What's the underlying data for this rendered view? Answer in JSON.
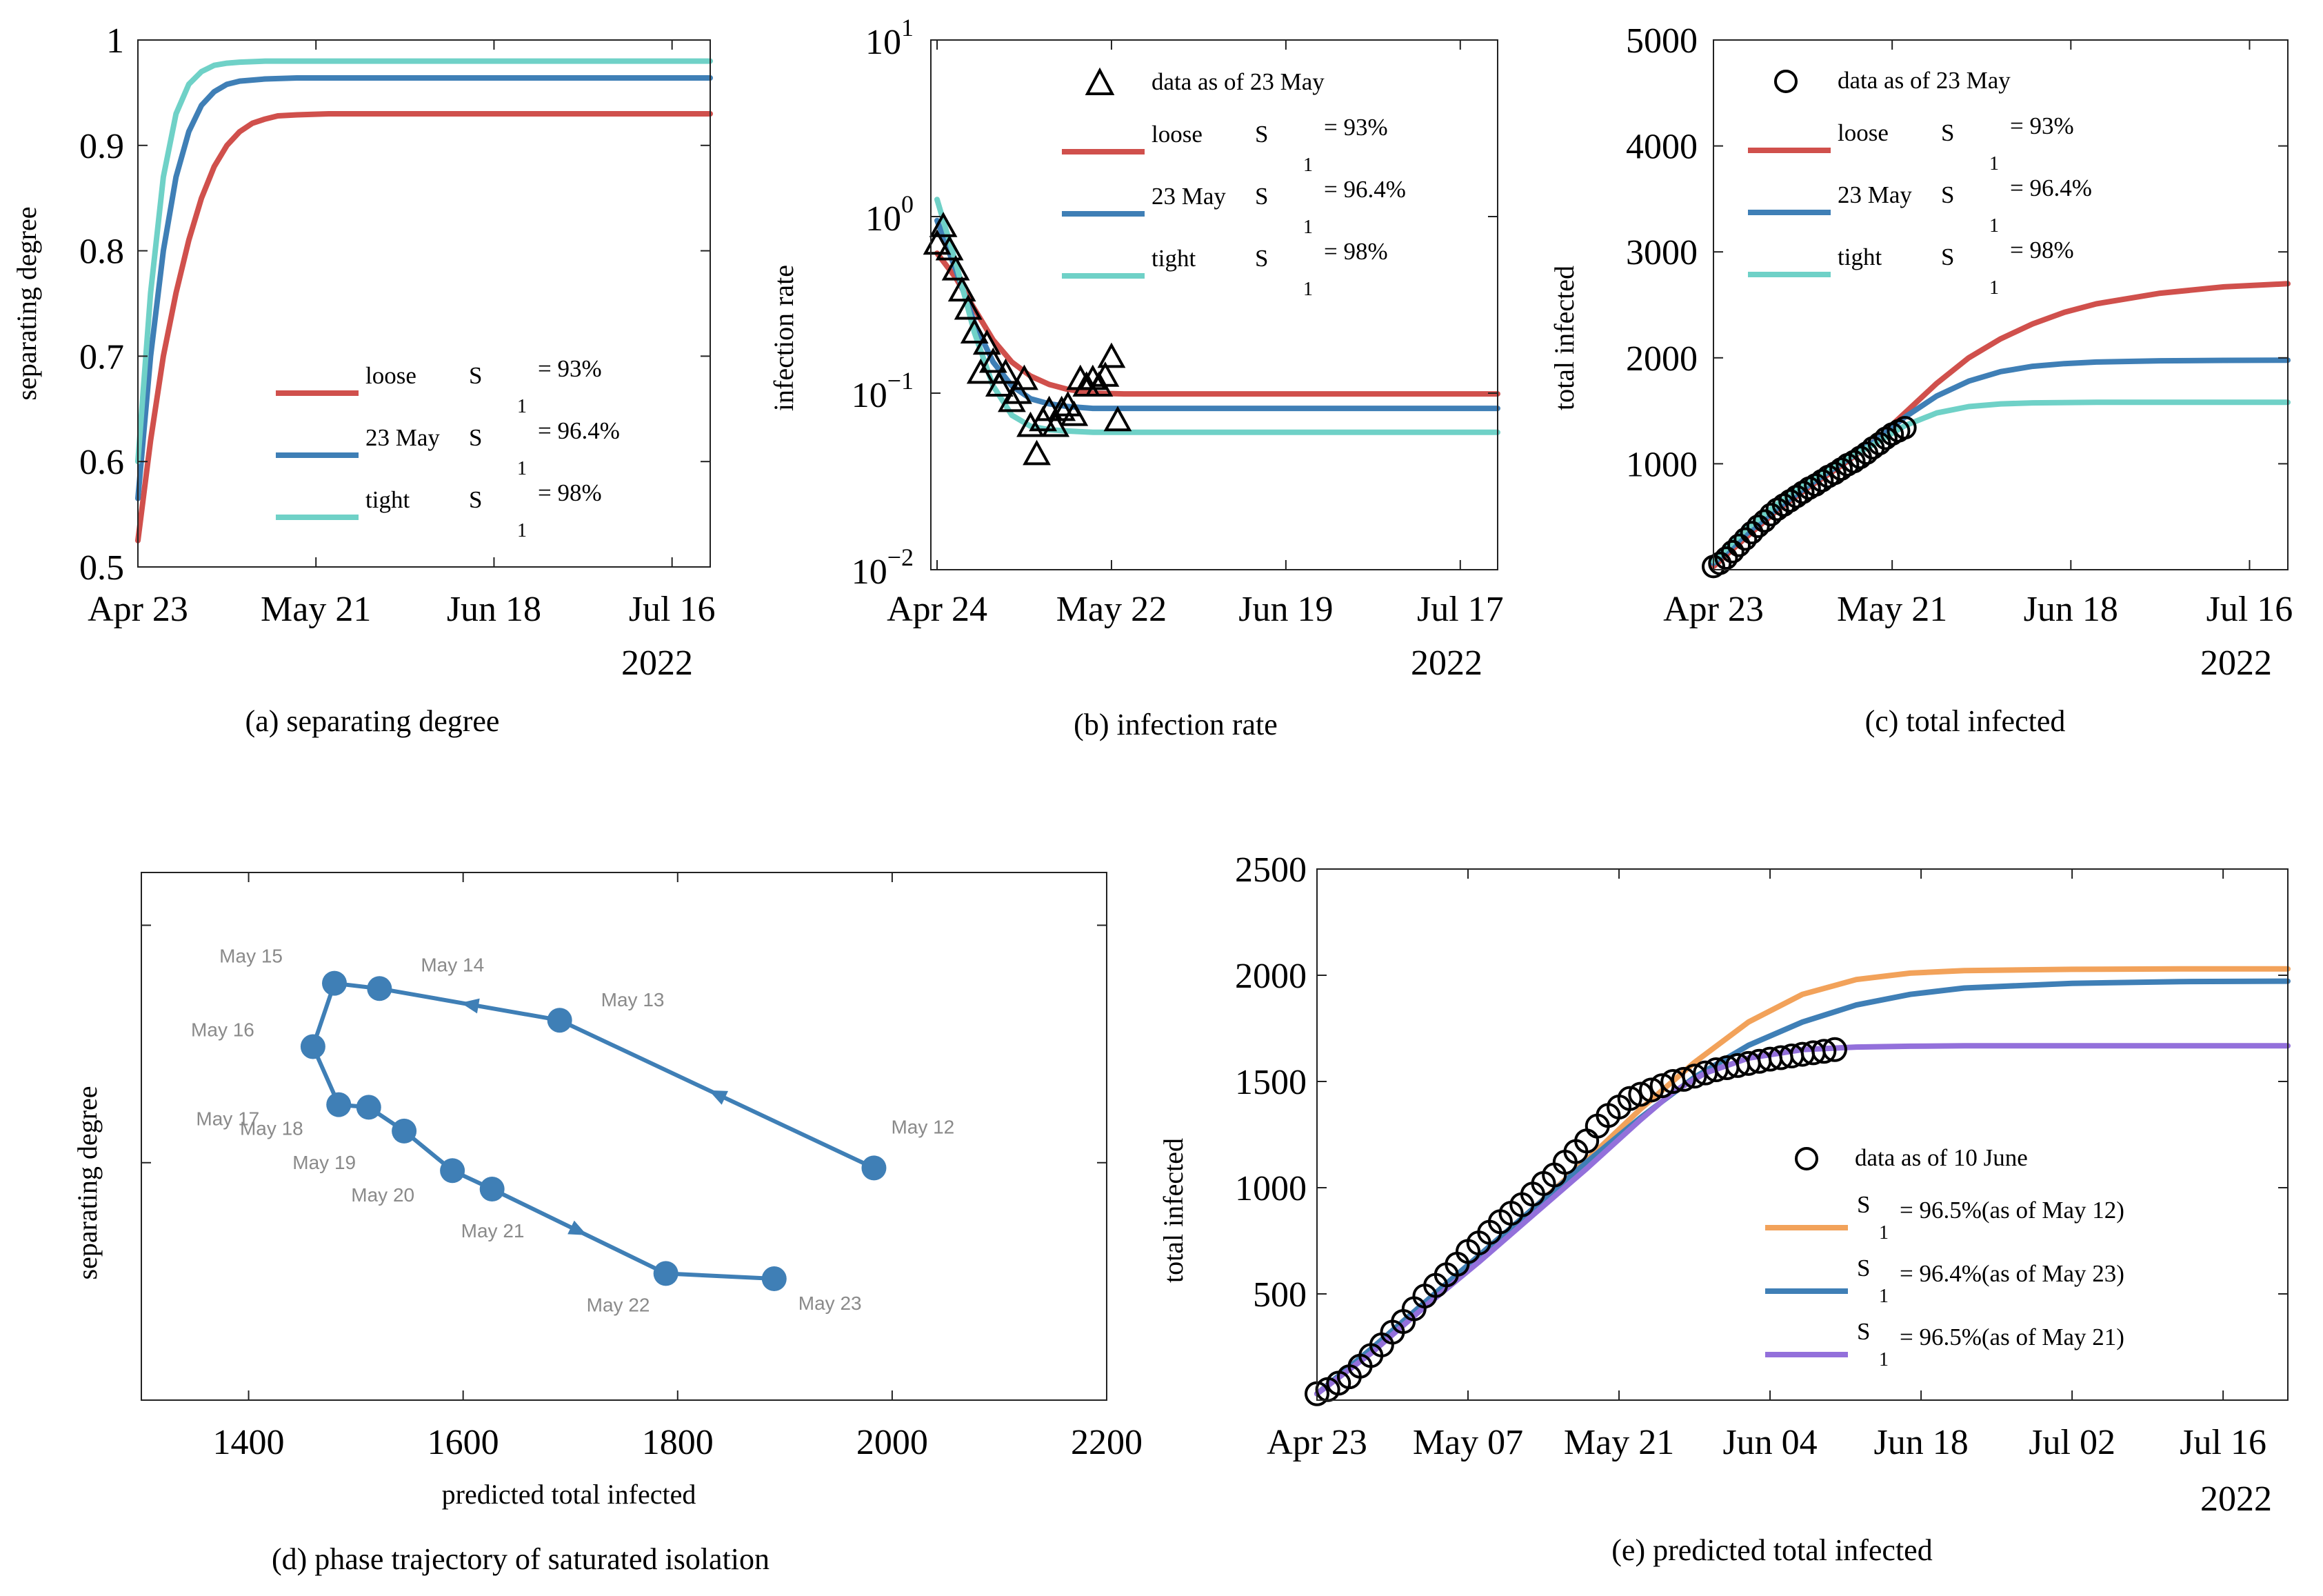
{
  "colors": {
    "loose": "#d0504c",
    "may23": "#3f7fb6",
    "tight": "#6fd1c7",
    "e_orange": "#f2a25a",
    "e_blue": "#3f7fb6",
    "e_purple": "#9370db",
    "phase": "#3f7fb6"
  },
  "chart_data": [
    {
      "id": "a",
      "type": "line",
      "caption_tag": "(a)",
      "caption_text": "separating degree",
      "title": "",
      "xlabel": "",
      "ylabel": "separating degree",
      "year_label": "2022",
      "xlim": [
        0,
        90
      ],
      "ylim": [
        0.5,
        1.0
      ],
      "xticks": [
        {
          "v": 0,
          "label": "Apr 23"
        },
        {
          "v": 28,
          "label": "May 21"
        },
        {
          "v": 56,
          "label": "Jun 18"
        },
        {
          "v": 84,
          "label": "Jul 16"
        }
      ],
      "yticks": [
        {
          "v": 0.5,
          "label": "0.5"
        },
        {
          "v": 0.6,
          "label": "0.6"
        },
        {
          "v": 0.7,
          "label": "0.7"
        },
        {
          "v": 0.8,
          "label": "0.8"
        },
        {
          "v": 0.9,
          "label": "0.9"
        },
        {
          "v": 1.0,
          "label": "1"
        }
      ],
      "legend": [
        {
          "name": "loose",
          "sub": "1",
          "value": "= 93%",
          "color_key": "loose"
        },
        {
          "name": "23 May",
          "sub": "1",
          "value": "= 96.4%",
          "color_key": "may23"
        },
        {
          "name": "tight",
          "sub": "1",
          "value": "= 98%",
          "color_key": "tight"
        }
      ],
      "legend_symbol": "S",
      "series": [
        {
          "name": "loose",
          "color_key": "loose",
          "x": [
            0,
            2,
            4,
            6,
            8,
            10,
            12,
            14,
            16,
            18,
            20,
            22,
            25,
            30,
            40,
            60,
            90
          ],
          "y": [
            0.525,
            0.62,
            0.7,
            0.76,
            0.81,
            0.85,
            0.88,
            0.9,
            0.913,
            0.921,
            0.925,
            0.928,
            0.929,
            0.93,
            0.93,
            0.93,
            0.93
          ]
        },
        {
          "name": "23 May",
          "color_key": "may23",
          "x": [
            0,
            2,
            4,
            6,
            8,
            10,
            12,
            14,
            16,
            20,
            25,
            30,
            40,
            60,
            90
          ],
          "y": [
            0.565,
            0.7,
            0.8,
            0.87,
            0.913,
            0.938,
            0.951,
            0.958,
            0.961,
            0.963,
            0.964,
            0.964,
            0.964,
            0.964,
            0.964
          ]
        },
        {
          "name": "tight",
          "color_key": "tight",
          "x": [
            0,
            2,
            4,
            6,
            8,
            10,
            12,
            14,
            16,
            20,
            25,
            30,
            40,
            60,
            90
          ],
          "y": [
            0.6,
            0.76,
            0.87,
            0.93,
            0.958,
            0.97,
            0.976,
            0.978,
            0.979,
            0.98,
            0.98,
            0.98,
            0.98,
            0.98,
            0.98
          ]
        }
      ]
    },
    {
      "id": "b",
      "type": "line",
      "caption_tag": "(b)",
      "caption_text": "infection rate",
      "title": "",
      "ylabel": "infection rate",
      "year_label": "2022",
      "yscale": "log",
      "xlim": [
        -1,
        90
      ],
      "ylim": [
        0.01,
        10
      ],
      "xticks": [
        {
          "v": 0,
          "label": "Apr 24"
        },
        {
          "v": 28,
          "label": "May 22"
        },
        {
          "v": 56,
          "label": "Jun 19"
        },
        {
          "v": 84,
          "label": "Jul 17"
        }
      ],
      "yticks": [
        {
          "v": 0.01,
          "base": "10",
          "exp": "−2"
        },
        {
          "v": 0.1,
          "base": "10",
          "exp": "−1"
        },
        {
          "v": 1,
          "base": "10",
          "exp": "0"
        },
        {
          "v": 10,
          "base": "10",
          "exp": "1"
        }
      ],
      "legend_symbol": "S",
      "legend_data_label": "data as of 23 May",
      "legend": [
        {
          "name": "loose",
          "sub": "1",
          "value": "= 93%",
          "color_key": "loose"
        },
        {
          "name": "23 May",
          "sub": "1",
          "value": "= 96.4%",
          "color_key": "may23"
        },
        {
          "name": "tight",
          "sub": "1",
          "value": "= 98%",
          "color_key": "tight"
        }
      ],
      "series": [
        {
          "name": "loose",
          "color_key": "loose",
          "x": [
            0,
            3,
            6,
            9,
            12,
            15,
            18,
            21,
            25,
            30,
            40,
            60,
            90
          ],
          "y": [
            0.62,
            0.45,
            0.3,
            0.2,
            0.15,
            0.125,
            0.112,
            0.105,
            0.1,
            0.099,
            0.099,
            0.099,
            0.099
          ]
        },
        {
          "name": "23 May",
          "color_key": "may23",
          "x": [
            0,
            3,
            6,
            9,
            12,
            15,
            18,
            21,
            25,
            30,
            40,
            60,
            90
          ],
          "y": [
            0.95,
            0.5,
            0.25,
            0.15,
            0.11,
            0.093,
            0.087,
            0.084,
            0.082,
            0.082,
            0.082,
            0.082,
            0.082
          ]
        },
        {
          "name": "tight",
          "color_key": "tight",
          "x": [
            0,
            3,
            6,
            9,
            12,
            15,
            18,
            21,
            25,
            30,
            40,
            60,
            90
          ],
          "y": [
            1.25,
            0.55,
            0.22,
            0.11,
            0.075,
            0.065,
            0.062,
            0.061,
            0.06,
            0.06,
            0.06,
            0.06,
            0.06
          ]
        }
      ],
      "data_points": {
        "x": [
          0,
          1,
          2,
          3,
          4,
          5,
          6,
          7,
          8,
          9,
          10,
          11,
          12,
          13,
          14,
          15,
          16,
          17,
          18,
          19,
          20,
          21,
          22,
          23,
          24,
          25,
          26,
          27,
          28,
          29
        ],
        "y": [
          0.7,
          0.88,
          0.65,
          0.5,
          0.38,
          0.3,
          0.22,
          0.13,
          0.19,
          0.15,
          0.11,
          0.13,
          0.09,
          0.1,
          0.12,
          0.065,
          0.045,
          0.07,
          0.08,
          0.065,
          0.08,
          0.085,
          0.075,
          0.12,
          0.11,
          0.12,
          0.11,
          0.125,
          0.16,
          0.07
        ]
      }
    },
    {
      "id": "c",
      "type": "line",
      "caption_tag": "(c)",
      "caption_text": "total infected",
      "ylabel": "total infected",
      "year_label": "2022",
      "xlim": [
        0,
        90
      ],
      "ylim": [
        0,
        5000
      ],
      "xticks": [
        {
          "v": 0,
          "label": "Apr 23"
        },
        {
          "v": 28,
          "label": "May 21"
        },
        {
          "v": 56,
          "label": "Jun 18"
        },
        {
          "v": 84,
          "label": "Jul 16"
        }
      ],
      "yticks": [
        {
          "v": 1000,
          "label": "1000"
        },
        {
          "v": 2000,
          "label": "2000"
        },
        {
          "v": 3000,
          "label": "3000"
        },
        {
          "v": 4000,
          "label": "4000"
        },
        {
          "v": 5000,
          "label": "5000"
        }
      ],
      "legend_symbol": "S",
      "legend_data_label": "data as of 23 May",
      "legend": [
        {
          "name": "loose",
          "sub": "1",
          "value": "= 93%",
          "color_key": "loose"
        },
        {
          "name": "23 May",
          "sub": "1",
          "value": "= 96.4%",
          "color_key": "may23"
        },
        {
          "name": "tight",
          "sub": "1",
          "value": "= 98%",
          "color_key": "tight"
        }
      ],
      "series": [
        {
          "name": "loose",
          "color_key": "loose",
          "x": [
            0,
            5,
            10,
            15,
            20,
            25,
            30,
            35,
            40,
            45,
            50,
            55,
            60,
            70,
            80,
            90
          ],
          "y": [
            30,
            300,
            560,
            780,
            980,
            1200,
            1480,
            1760,
            2000,
            2180,
            2320,
            2430,
            2510,
            2610,
            2670,
            2700
          ]
        },
        {
          "name": "23 May",
          "color_key": "may23",
          "x": [
            0,
            5,
            10,
            15,
            20,
            25,
            30,
            35,
            40,
            45,
            50,
            55,
            60,
            70,
            80,
            90
          ],
          "y": [
            60,
            330,
            580,
            800,
            1000,
            1200,
            1440,
            1640,
            1780,
            1870,
            1920,
            1945,
            1960,
            1972,
            1976,
            1978
          ]
        },
        {
          "name": "tight",
          "color_key": "tight",
          "x": [
            0,
            5,
            10,
            15,
            20,
            25,
            30,
            35,
            40,
            45,
            50,
            60,
            70,
            90
          ],
          "y": [
            80,
            380,
            620,
            830,
            1020,
            1180,
            1360,
            1480,
            1540,
            1565,
            1575,
            1580,
            1580,
            1580
          ]
        }
      ],
      "data_points": {
        "x": [
          0,
          1,
          2,
          3,
          4,
          5,
          6,
          7,
          8,
          9,
          10,
          11,
          12,
          13,
          14,
          15,
          16,
          17,
          18,
          19,
          20,
          21,
          22,
          23,
          24,
          25,
          26,
          27,
          28,
          29,
          30
        ],
        "y": [
          30,
          60,
          110,
          170,
          230,
          290,
          350,
          410,
          460,
          520,
          570,
          610,
          650,
          690,
          730,
          770,
          800,
          840,
          880,
          910,
          950,
          990,
          1020,
          1060,
          1100,
          1150,
          1190,
          1240,
          1280,
          1310,
          1340
        ]
      }
    },
    {
      "id": "d",
      "type": "scatter",
      "caption_tag": "(d)",
      "caption_text": "phase trajectory of saturated isolation",
      "xlabel": "predicted total infected",
      "ylabel": "separating degree",
      "xlim": [
        1300,
        2200
      ],
      "ylim": [
        0,
        100
      ],
      "xticks": [
        {
          "v": 1400,
          "label": "1400"
        },
        {
          "v": 1600,
          "label": "1600"
        },
        {
          "v": 1800,
          "label": "1800"
        },
        {
          "v": 2000,
          "label": "2000"
        },
        {
          "v": 2200,
          "label": "2200"
        }
      ],
      "yticks": [
        {
          "v": 45,
          "label": ""
        },
        {
          "v": 90,
          "label": ""
        }
      ],
      "points": [
        {
          "label": "May 12",
          "x": 1983,
          "y": 44
        },
        {
          "label": "May 13",
          "x": 1690,
          "y": 72
        },
        {
          "label": "May 14",
          "x": 1522,
          "y": 78
        },
        {
          "label": "May 15",
          "x": 1480,
          "y": 79
        },
        {
          "label": "May 16",
          "x": 1460,
          "y": 67
        },
        {
          "label": "May 17",
          "x": 1484,
          "y": 56
        },
        {
          "label": "May 18",
          "x": 1512,
          "y": 55.5
        },
        {
          "label": "May 19",
          "x": 1545,
          "y": 51
        },
        {
          "label": "May 20",
          "x": 1590,
          "y": 43.5
        },
        {
          "label": "May 21",
          "x": 1627,
          "y": 40
        },
        {
          "label": "May 22",
          "x": 1789,
          "y": 24
        },
        {
          "label": "May 23",
          "x": 1890,
          "y": 23
        }
      ]
    },
    {
      "id": "e",
      "type": "line",
      "caption_tag": "(e)",
      "caption_text": "predicted total infected",
      "ylabel": "total infected",
      "year_label": "2022",
      "xlim": [
        0,
        90
      ],
      "ylim": [
        0,
        2500
      ],
      "xticks": [
        {
          "v": 0,
          "label": "Apr 23"
        },
        {
          "v": 14,
          "label": "May 07"
        },
        {
          "v": 28,
          "label": "May 21"
        },
        {
          "v": 42,
          "label": "Jun 04"
        },
        {
          "v": 56,
          "label": "Jun 18"
        },
        {
          "v": 70,
          "label": "Jul 02"
        },
        {
          "v": 84,
          "label": "Jul 16"
        }
      ],
      "yticks": [
        {
          "v": 500,
          "label": "500"
        },
        {
          "v": 1000,
          "label": "1000"
        },
        {
          "v": 1500,
          "label": "1500"
        },
        {
          "v": 2000,
          "label": "2000"
        },
        {
          "v": 2500,
          "label": "2500"
        }
      ],
      "legend_symbol": "S",
      "legend_data_label": "data as of 10 June",
      "legend": [
        {
          "sub": "1",
          "value": "= 96.5%(as of May 12)",
          "color_key": "e_orange"
        },
        {
          "sub": "1",
          "value": "= 96.4%(as of May 23)",
          "color_key": "e_blue"
        },
        {
          "sub": "1",
          "value": "= 96.5%(as of May 21)",
          "color_key": "e_purple"
        }
      ],
      "series": [
        {
          "name": "96.5% (as of May 12)",
          "color_key": "e_orange",
          "x": [
            0,
            5,
            10,
            15,
            20,
            25,
            30,
            35,
            40,
            45,
            50,
            55,
            60,
            70,
            80,
            90
          ],
          "y": [
            30,
            240,
            460,
            680,
            900,
            1130,
            1370,
            1590,
            1780,
            1910,
            1980,
            2010,
            2022,
            2028,
            2030,
            2030
          ]
        },
        {
          "name": "96.4% (as of May 23)",
          "color_key": "e_blue",
          "x": [
            0,
            5,
            10,
            15,
            20,
            25,
            30,
            35,
            40,
            45,
            50,
            55,
            60,
            70,
            80,
            90
          ],
          "y": [
            30,
            240,
            460,
            680,
            900,
            1120,
            1330,
            1520,
            1670,
            1780,
            1860,
            1910,
            1940,
            1962,
            1970,
            1972
          ]
        },
        {
          "name": "96.5% (as of May 21)",
          "color_key": "e_purple",
          "x": [
            0,
            5,
            10,
            15,
            20,
            25,
            30,
            33,
            36,
            40,
            45,
            50,
            55,
            60,
            70,
            90
          ],
          "y": [
            30,
            220,
            440,
            650,
            870,
            1090,
            1320,
            1450,
            1540,
            1610,
            1650,
            1662,
            1666,
            1668,
            1668,
            1668
          ]
        }
      ],
      "data_points": {
        "x": [
          0,
          1,
          2,
          3,
          4,
          5,
          6,
          7,
          8,
          9,
          10,
          11,
          12,
          13,
          14,
          15,
          16,
          17,
          18,
          19,
          20,
          21,
          22,
          23,
          24,
          25,
          26,
          27,
          28,
          29,
          30,
          31,
          32,
          33,
          34,
          35,
          36,
          37,
          38,
          39,
          40,
          41,
          42,
          43,
          44,
          45,
          46,
          47,
          48
        ],
        "y": [
          30,
          50,
          80,
          110,
          160,
          210,
          260,
          320,
          370,
          430,
          490,
          540,
          590,
          640,
          700,
          740,
          790,
          840,
          880,
          920,
          970,
          1020,
          1060,
          1120,
          1170,
          1220,
          1290,
          1340,
          1380,
          1420,
          1440,
          1460,
          1480,
          1500,
          1510,
          1525,
          1540,
          1555,
          1565,
          1575,
          1585,
          1595,
          1605,
          1612,
          1620,
          1628,
          1635,
          1642,
          1650
        ]
      }
    }
  ]
}
